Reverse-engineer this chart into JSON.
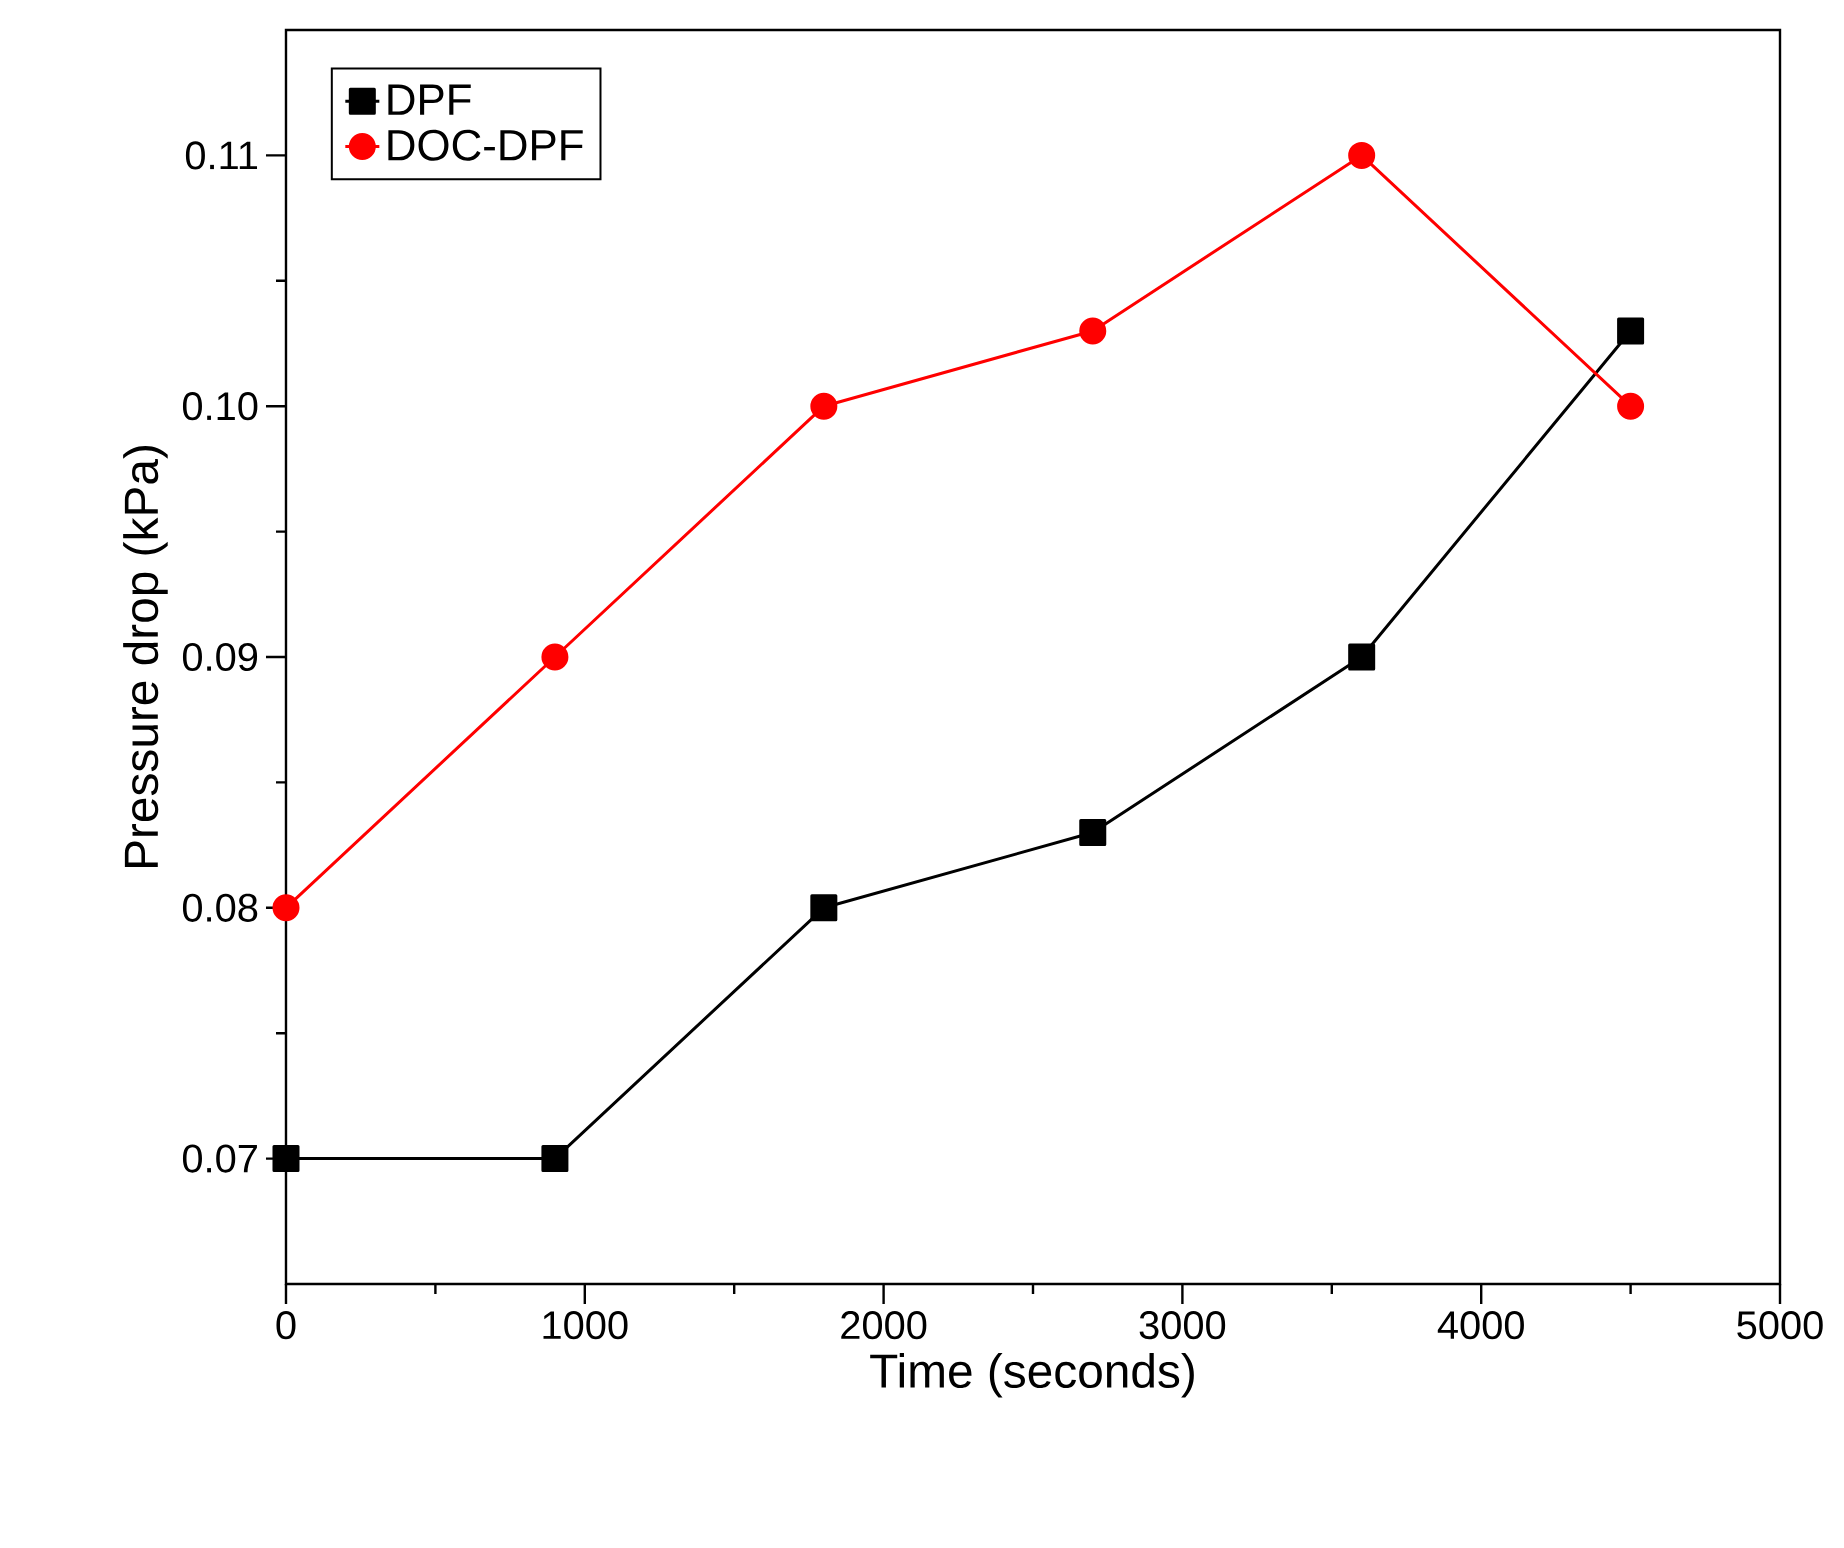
{
  "chart_data": {
    "type": "line",
    "xlabel": "Time (seconds)",
    "ylabel": "Pressure drop (kPa)",
    "x": [
      0,
      900,
      1800,
      2700,
      3600,
      4500
    ],
    "series": [
      {
        "name": "DPF",
        "color": "#000000",
        "marker": "square",
        "values": [
          0.07,
          0.07,
          0.08,
          0.083,
          0.09,
          0.103
        ]
      },
      {
        "name": "DOC-DPF",
        "color": "#ff0000",
        "marker": "circle",
        "values": [
          0.08,
          0.09,
          0.1,
          0.103,
          0.11,
          0.1
        ]
      }
    ],
    "xlim": [
      0,
      5000
    ],
    "xticks": [
      0,
      1000,
      2000,
      3000,
      4000,
      5000
    ],
    "ylim": [
      0.065,
      0.115
    ],
    "yticks": [
      {
        "value": 0.07,
        "label": "0.07"
      },
      {
        "value": 0.08,
        "label": "0.08"
      },
      {
        "value": 0.09,
        "label": "0.09"
      },
      {
        "value": 0.1,
        "label": "0.10"
      },
      {
        "value": 0.11,
        "label": "0.11"
      }
    ],
    "grid": false,
    "legend": "top left",
    "line_style": "solid"
  }
}
